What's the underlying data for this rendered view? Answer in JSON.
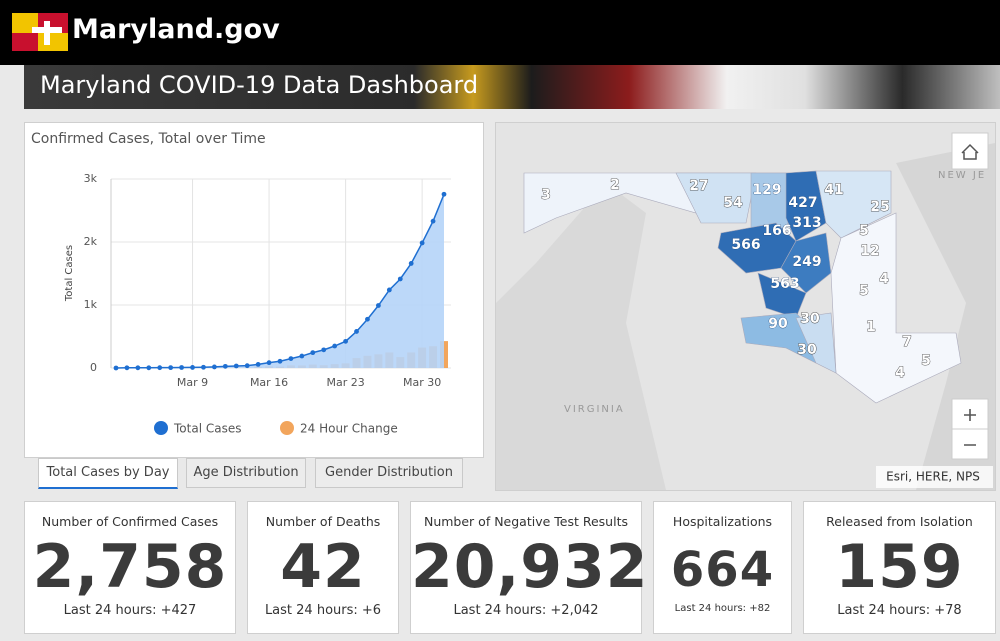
{
  "header": {
    "site": "Maryland.gov",
    "title": "Maryland COVID-19 Data Dashboard"
  },
  "chart_data": {
    "type": "line",
    "title": "Confirmed Cases, Total over Time",
    "y_label": "Total Cases",
    "categories": [
      null,
      null,
      null,
      null,
      null,
      null,
      null,
      "Mar 9",
      null,
      null,
      null,
      null,
      null,
      null,
      "Mar 16",
      null,
      null,
      null,
      null,
      null,
      null,
      "Mar 23",
      null,
      null,
      null,
      null,
      null,
      null,
      "Mar 30",
      null,
      null
    ],
    "series": [
      {
        "name": "Total Cases",
        "type": "area",
        "color": "#1f6fd1",
        "fill": "#b5d4f8",
        "values": [
          0,
          3,
          3,
          3,
          5,
          6,
          8,
          9,
          12,
          17,
          26,
          32,
          37,
          57,
          85,
          107,
          149,
          190,
          244,
          288,
          349,
          423,
          580,
          774,
          992,
          1239,
          1413,
          1660,
          1985,
          2331,
          2758
        ]
      },
      {
        "name": "24 Hour Change",
        "type": "bar",
        "color": "#f2a55c",
        "values": [
          0,
          3,
          0,
          0,
          2,
          1,
          2,
          1,
          3,
          5,
          9,
          6,
          5,
          20,
          28,
          22,
          42,
          41,
          54,
          44,
          61,
          74,
          157,
          194,
          218,
          247,
          174,
          247,
          325,
          346,
          427
        ]
      }
    ],
    "ylim": [
      0,
      3000
    ],
    "yticks": [
      0,
      {
        "value": 1000,
        "label": "1k"
      },
      {
        "value": 2000,
        "label": "2k"
      },
      {
        "value": 3000,
        "label": "3k"
      }
    ],
    "grid": true
  },
  "tabs": [
    "Total Cases by Day",
    "Age Distribution",
    "Gender Distribution"
  ],
  "map": {
    "county_counts": [
      3,
      2,
      27,
      54,
      129,
      427,
      41,
      25,
      313,
      166,
      566,
      5,
      12,
      249,
      4,
      563,
      5,
      90,
      30,
      1,
      7,
      30,
      5,
      4
    ],
    "places": [
      "NEW JE",
      "VIRGINIA"
    ],
    "attribution": "Esri, HERE, NPS"
  },
  "cards": [
    {
      "label": "Number of Confirmed Cases",
      "value": "2,758",
      "change": "Last 24 hours: +427"
    },
    {
      "label": "Number of Deaths",
      "value": "42",
      "change": "Last 24 hours: +6"
    },
    {
      "label": "Number of Negative Test Results",
      "value": "20,932",
      "change": "Last 24 hours: +2,042"
    },
    {
      "label": "Hospitalizations",
      "value": "664",
      "change": "Last 24 hours: +82"
    },
    {
      "label": "Released from Isolation",
      "value": "159",
      "change": "Last 24 hours: +78"
    }
  ]
}
